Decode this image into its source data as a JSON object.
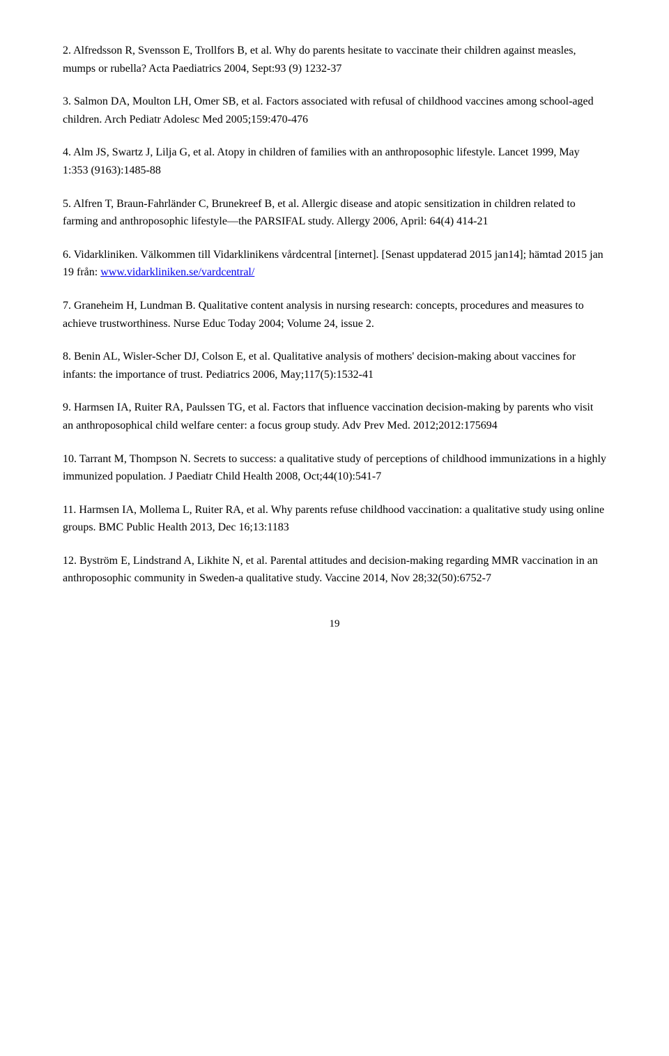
{
  "references": [
    {
      "pre": "2. Alfredsson R, Svensson E, Trollfors B, et al. Why do parents hesitate to vaccinate their children against measles, mumps or rubella? Acta Paediatrics 2004, Sept:93 (9) 1232-37",
      "link": null,
      "post": null
    },
    {
      "pre": "3. Salmon DA, Moulton LH, Omer SB, et al. Factors associated with refusal of childhood vaccines among school-aged children. Arch Pediatr Adolesc Med 2005;159:470-476",
      "link": null,
      "post": null
    },
    {
      "pre": "4. Alm JS, Swartz J, Lilja G, et al. Atopy in children of families with an anthroposophic lifestyle. Lancet 1999, May 1:353 (9163):1485-88",
      "link": null,
      "post": null
    },
    {
      "pre": "5. Alfren T, Braun-Fahrländer C, Brunekreef B, et al. Allergic disease and atopic sensitization in children related to farming and anthroposophic lifestyle—the PARSIFAL study. Allergy 2006, April: 64(4) 414-21",
      "link": null,
      "post": null
    },
    {
      "pre": "6. Vidarkliniken. Välkommen till Vidarklinikens vårdcentral [internet]. [Senast uppdaterad 2015 jan14]; hämtad 2015 jan 19 från: ",
      "link": "www.vidarkliniken.se/vardcentral/",
      "post": null
    },
    {
      "pre": "7. Graneheim H, Lundman B. Qualitative content analysis in nursing research: concepts, procedures and measures to achieve trustworthiness. Nurse Educ Today 2004; Volume 24, issue 2.",
      "link": null,
      "post": null
    },
    {
      "pre": "8. Benin AL, Wisler-Scher DJ, Colson E, et al. Qualitative analysis of mothers' decision-making about vaccines for infants: the importance of trust. Pediatrics 2006, May;117(5):1532-41",
      "link": null,
      "post": null
    },
    {
      "pre": "9. Harmsen IA, Ruiter RA, Paulssen TG, et al. Factors that influence vaccination decision-making by parents who visit an anthroposophical child welfare center: a focus group study. Adv Prev Med. 2012;2012:175694",
      "link": null,
      "post": null
    },
    {
      "pre": "10. Tarrant M, Thompson N. Secrets to success: a qualitative study of perceptions of childhood immunizations in a highly immunized population. J Paediatr Child Health 2008, Oct;44(10):541-7",
      "link": null,
      "post": null
    },
    {
      "pre": "11. Harmsen IA, Mollema L, Ruiter RA, et al. Why parents refuse childhood vaccination: a qualitative study using online groups. BMC Public Health 2013, Dec 16;13:1183",
      "link": null,
      "post": null
    },
    {
      "pre": "12. Byström E, Lindstrand A, Likhite N, et al. Parental attitudes and decision-making regarding MMR vaccination in an anthroposophic community in Sweden-a qualitative study. Vaccine 2014, Nov 28;32(50):6752-7",
      "link": null,
      "post": null
    }
  ],
  "page_number": "19",
  "link_color": "#0000ee",
  "text_color": "#000000",
  "background_color": "#ffffff",
  "font_family": "Times New Roman",
  "font_size_pt": 12
}
